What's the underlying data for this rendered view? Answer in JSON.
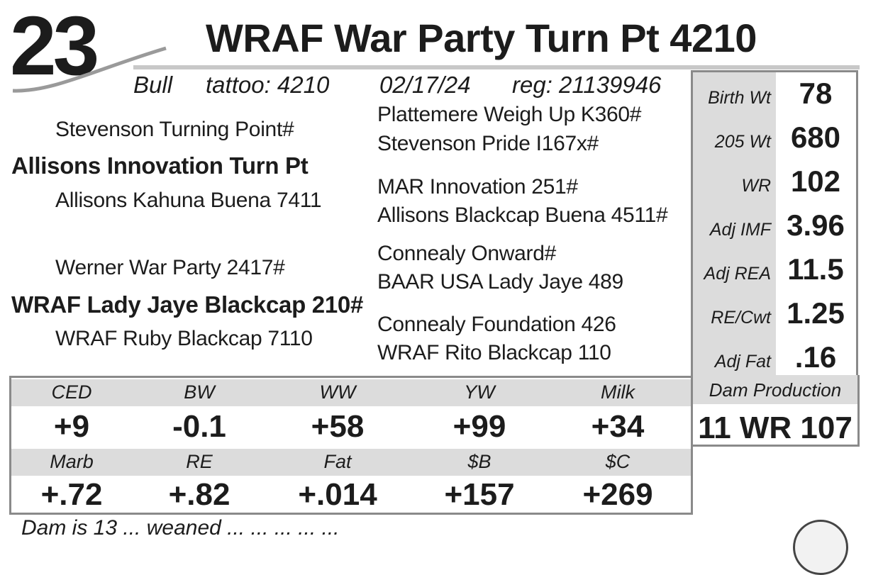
{
  "lot_number": "23",
  "animal_name": "WRAF War Party Turn Pt 4210",
  "info": {
    "sex": "Bull",
    "tattoo": "tattoo: 4210",
    "birth_date": "02/17/24",
    "registration": "reg: 21139946"
  },
  "pedigree": {
    "sire_sire": "Stevenson Turning Point#",
    "sire": "Allisons Innovation Turn Pt",
    "sire_dam": "Allisons Kahuna Buena 7411",
    "dam_sire": "Werner War Party 2417#",
    "dam": "WRAF Lady Jaye Blackcap 210#",
    "dam_dam": "WRAF Ruby Blackcap 7110",
    "gen3": [
      "Plattemere Weigh Up K360#",
      "Stevenson Pride I167x#",
      "MAR Innovation 251#",
      "Allisons Blackcap Buena 4511#",
      "Connealy Onward#",
      "BAAR USA Lady Jaye 489",
      "Connealy Foundation 426",
      "WRAF Rito Blackcap 110"
    ]
  },
  "performance": [
    {
      "label": "Birth Wt",
      "value": "78"
    },
    {
      "label": "205 Wt",
      "value": "680"
    },
    {
      "label": "WR",
      "value": "102"
    },
    {
      "label": "Adj IMF",
      "value": "3.96"
    },
    {
      "label": "Adj REA",
      "value": "11.5"
    },
    {
      "label": "RE/Cwt",
      "value": "1.25"
    },
    {
      "label": "Adj Fat",
      "value": ".16"
    }
  ],
  "dam_production": {
    "label": "Dam Production",
    "value": "11 WR 107"
  },
  "epds": {
    "row1": [
      {
        "label": "CED",
        "value": "+9"
      },
      {
        "label": "BW",
        "value": "-0.1"
      },
      {
        "label": "WW",
        "value": "+58"
      },
      {
        "label": "YW",
        "value": "+99"
      },
      {
        "label": "Milk",
        "value": "+34"
      }
    ],
    "row2": [
      {
        "label": "Marb",
        "value": "+.72"
      },
      {
        "label": "RE",
        "value": "+.82"
      },
      {
        "label": "Fat",
        "value": "+.014"
      },
      {
        "label": "$B",
        "value": "+157"
      },
      {
        "label": "$C",
        "value": "+269"
      }
    ]
  },
  "footnote": "Dam is 13 ... weaned ... ... ... ... ...",
  "colors": {
    "band": "#dcdcdc",
    "border": "#8a8a8a",
    "text": "#1c1c1c"
  }
}
